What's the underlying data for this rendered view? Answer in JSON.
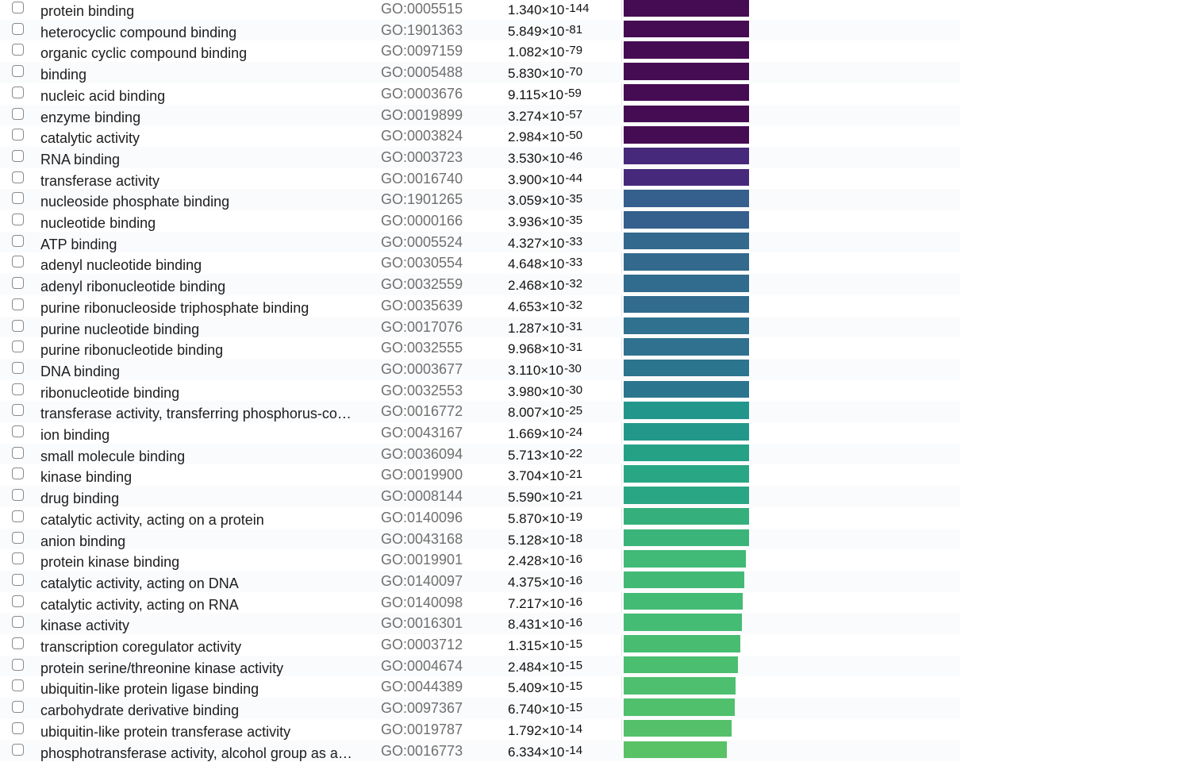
{
  "rows": [
    {
      "term": "protein binding",
      "go_id": "GO:0005515",
      "mantissa": "1.340",
      "exponent": "-144",
      "bar_fraction": 1.0,
      "color": "#460c53"
    },
    {
      "term": "heterocyclic compound binding",
      "go_id": "GO:1901363",
      "mantissa": "5.849",
      "exponent": "-81",
      "bar_fraction": 1.0,
      "color": "#460c53"
    },
    {
      "term": "organic cyclic compound binding",
      "go_id": "GO:0097159",
      "mantissa": "1.082",
      "exponent": "-79",
      "bar_fraction": 1.0,
      "color": "#460c53"
    },
    {
      "term": "binding",
      "go_id": "GO:0005488",
      "mantissa": "5.830",
      "exponent": "-70",
      "bar_fraction": 1.0,
      "color": "#460c53"
    },
    {
      "term": "nucleic acid binding",
      "go_id": "GO:0003676",
      "mantissa": "9.115",
      "exponent": "-59",
      "bar_fraction": 1.0,
      "color": "#460c53"
    },
    {
      "term": "enzyme binding",
      "go_id": "GO:0019899",
      "mantissa": "3.274",
      "exponent": "-57",
      "bar_fraction": 1.0,
      "color": "#460c53"
    },
    {
      "term": "catalytic activity",
      "go_id": "GO:0003824",
      "mantissa": "2.984",
      "exponent": "-50",
      "bar_fraction": 1.0,
      "color": "#460c53"
    },
    {
      "term": "RNA binding",
      "go_id": "GO:0003723",
      "mantissa": "3.530",
      "exponent": "-46",
      "bar_fraction": 1.0,
      "color": "#47297b"
    },
    {
      "term": "transferase activity",
      "go_id": "GO:0016740",
      "mantissa": "3.900",
      "exponent": "-44",
      "bar_fraction": 1.0,
      "color": "#47297b"
    },
    {
      "term": "nucleoside phosphate binding",
      "go_id": "GO:1901265",
      "mantissa": "3.059",
      "exponent": "-35",
      "bar_fraction": 1.0,
      "color": "#355f8d"
    },
    {
      "term": "nucleotide binding",
      "go_id": "GO:0000166",
      "mantissa": "3.936",
      "exponent": "-35",
      "bar_fraction": 1.0,
      "color": "#355f8d"
    },
    {
      "term": "ATP binding",
      "go_id": "GO:0005524",
      "mantissa": "4.327",
      "exponent": "-33",
      "bar_fraction": 1.0,
      "color": "#33698d"
    },
    {
      "term": "adenyl nucleotide binding",
      "go_id": "GO:0030554",
      "mantissa": "4.648",
      "exponent": "-33",
      "bar_fraction": 1.0,
      "color": "#33698d"
    },
    {
      "term": "adenyl ribonucleotide binding",
      "go_id": "GO:0032559",
      "mantissa": "2.468",
      "exponent": "-32",
      "bar_fraction": 1.0,
      "color": "#316b8d"
    },
    {
      "term": "purine ribonucleoside triphosphate binding",
      "go_id": "GO:0035639",
      "mantissa": "4.653",
      "exponent": "-32",
      "bar_fraction": 1.0,
      "color": "#316b8d"
    },
    {
      "term": "purine nucleotide binding",
      "go_id": "GO:0017076",
      "mantissa": "1.287",
      "exponent": "-31",
      "bar_fraction": 1.0,
      "color": "#2f718e"
    },
    {
      "term": "purine ribonucleotide binding",
      "go_id": "GO:0032555",
      "mantissa": "9.968",
      "exponent": "-31",
      "bar_fraction": 1.0,
      "color": "#2f718e"
    },
    {
      "term": "DNA binding",
      "go_id": "GO:0003677",
      "mantissa": "3.110",
      "exponent": "-30",
      "bar_fraction": 1.0,
      "color": "#2c758e"
    },
    {
      "term": "ribonucleotide binding",
      "go_id": "GO:0032553",
      "mantissa": "3.980",
      "exponent": "-30",
      "bar_fraction": 1.0,
      "color": "#2c758e"
    },
    {
      "term": "transferase activity, transferring phosphorus-containing groups",
      "go_id": "GO:0016772",
      "mantissa": "8.007",
      "exponent": "-25",
      "bar_fraction": 1.0,
      "color": "#23968b"
    },
    {
      "term": "ion binding",
      "go_id": "GO:0043167",
      "mantissa": "1.669",
      "exponent": "-24",
      "bar_fraction": 1.0,
      "color": "#23988a"
    },
    {
      "term": "small molecule binding",
      "go_id": "GO:0036094",
      "mantissa": "5.713",
      "exponent": "-22",
      "bar_fraction": 1.0,
      "color": "#25a285"
    },
    {
      "term": "kinase binding",
      "go_id": "GO:0019900",
      "mantissa": "3.704",
      "exponent": "-21",
      "bar_fraction": 1.0,
      "color": "#29a784"
    },
    {
      "term": "drug binding",
      "go_id": "GO:0008144",
      "mantissa": "5.590",
      "exponent": "-21",
      "bar_fraction": 1.0,
      "color": "#29a784"
    },
    {
      "term": "catalytic activity, acting on a protein",
      "go_id": "GO:0140096",
      "mantissa": "5.870",
      "exponent": "-19",
      "bar_fraction": 1.0,
      "color": "#35b07c"
    },
    {
      "term": "anion binding",
      "go_id": "GO:0043168",
      "mantissa": "5.128",
      "exponent": "-18",
      "bar_fraction": 1.0,
      "color": "#3bb47a"
    },
    {
      "term": "protein kinase binding",
      "go_id": "GO:0019901",
      "mantissa": "2.428",
      "exponent": "-16",
      "bar_fraction": 0.975,
      "color": "#41b977"
    },
    {
      "term": "catalytic activity, acting on DNA",
      "go_id": "GO:0140097",
      "mantissa": "4.375",
      "exponent": "-16",
      "bar_fraction": 0.962,
      "color": "#42ba76"
    },
    {
      "term": "catalytic activity, acting on RNA",
      "go_id": "GO:0140098",
      "mantissa": "7.217",
      "exponent": "-16",
      "bar_fraction": 0.95,
      "color": "#44bb75"
    },
    {
      "term": "kinase activity",
      "go_id": "GO:0016301",
      "mantissa": "8.431",
      "exponent": "-16",
      "bar_fraction": 0.943,
      "color": "#45bc74"
    },
    {
      "term": "transcription coregulator activity",
      "go_id": "GO:0003712",
      "mantissa": "1.315",
      "exponent": "-15",
      "bar_fraction": 0.93,
      "color": "#48bd72"
    },
    {
      "term": "protein serine/threonine kinase activity",
      "go_id": "GO:0004674",
      "mantissa": "2.484",
      "exponent": "-15",
      "bar_fraction": 0.911,
      "color": "#4bbe70"
    },
    {
      "term": "ubiquitin-like protein ligase binding",
      "go_id": "GO:0044389",
      "mantissa": "5.409",
      "exponent": "-15",
      "bar_fraction": 0.892,
      "color": "#4ebf6e"
    },
    {
      "term": "carbohydrate derivative binding",
      "go_id": "GO:0097367",
      "mantissa": "6.740",
      "exponent": "-15",
      "bar_fraction": 0.886,
      "color": "#50c06d"
    },
    {
      "term": "ubiquitin-like protein transferase activity",
      "go_id": "GO:0019787",
      "mantissa": "1.792",
      "exponent": "-14",
      "bar_fraction": 0.861,
      "color": "#54c06a"
    },
    {
      "term": "phosphotransferase activity, alcohol group as acceptor",
      "go_id": "GO:0016773",
      "mantissa": "6.334",
      "exponent": "-14",
      "bar_fraction": 0.823,
      "color": "#59c166"
    }
  ]
}
